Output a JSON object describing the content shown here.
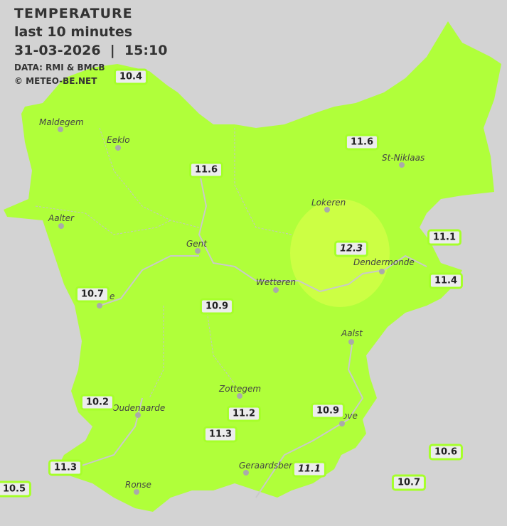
{
  "header": {
    "title": "TEMPERATURE",
    "subtitle": "last 10 minutes",
    "datetime": "31-03-2026  |  15:10",
    "source": "DATA: RMI & BMCB",
    "copyright": "© METEO-BE.NET"
  },
  "colors": {
    "background": "#d3d3d3",
    "temp_11": "#b0ff3a",
    "temp_12": "#ccff44",
    "station_border": "#a6ff2a"
  },
  "cities": [
    {
      "name": "Maldegem"
    },
    {
      "name": "Eeklo"
    },
    {
      "name": "St-Niklaas"
    },
    {
      "name": "Lokeren"
    },
    {
      "name": "Aalter"
    },
    {
      "name": "Gent"
    },
    {
      "name": "Dendermonde"
    },
    {
      "name": "Wetteren"
    },
    {
      "name": "e"
    },
    {
      "name": "Aalst"
    },
    {
      "name": "Zottegem"
    },
    {
      "name": "Oudenaarde"
    },
    {
      "name": "ove"
    },
    {
      "name": "Geraardsberg"
    },
    {
      "name": "Ronse"
    }
  ],
  "stations": [
    {
      "value": "10.4"
    },
    {
      "value": "11.6"
    },
    {
      "value": "11.6"
    },
    {
      "value": "11.1"
    },
    {
      "value": "12.3",
      "italic": true
    },
    {
      "value": "11.4"
    },
    {
      "value": "10.7"
    },
    {
      "value": "10.9"
    },
    {
      "value": "10.2"
    },
    {
      "value": "11.2"
    },
    {
      "value": "10.9"
    },
    {
      "value": "11.3"
    },
    {
      "value": "10.6"
    },
    {
      "value": "11.3"
    },
    {
      "value": "11.1",
      "italic": true
    },
    {
      "value": "10.7"
    },
    {
      "value": "10.5"
    }
  ]
}
